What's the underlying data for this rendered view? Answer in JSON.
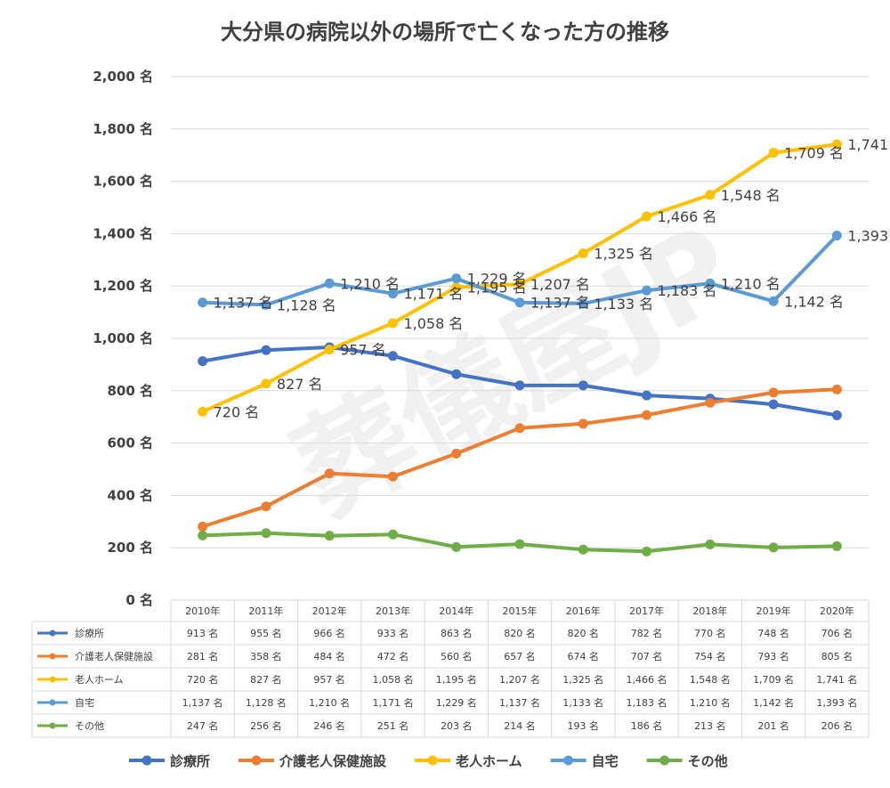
{
  "chart_data": {
    "type": "line",
    "title": "大分県の病院以外の場所で亡くなった方の推移",
    "watermark": "葬儀屋JP",
    "unit": "名",
    "ylim": [
      0,
      2000
    ],
    "yticks": [
      "0 名",
      "200 名",
      "400 名",
      "600 名",
      "800 名",
      "1,000 名",
      "1,200 名",
      "1,400 名",
      "1,600 名",
      "1,800 名",
      "2,000 名"
    ],
    "categories": [
      "2010年",
      "2011年",
      "2012年",
      "2013年",
      "2014年",
      "2015年",
      "2016年",
      "2017年",
      "2018年",
      "2019年",
      "2020年"
    ],
    "legend_position": "bottom",
    "series": [
      {
        "name": "診療所",
        "color": "#4472c4",
        "show_labels": false,
        "values": [
          913,
          955,
          966,
          933,
          863,
          820,
          820,
          782,
          770,
          748,
          706
        ],
        "labels": [
          "913 名",
          "955 名",
          "966 名",
          "933 名",
          "863 名",
          "820 名",
          "820 名",
          "782 名",
          "770 名",
          "748 名",
          "706 名"
        ]
      },
      {
        "name": "介護老人保健施設",
        "color": "#ed7d31",
        "show_labels": false,
        "values": [
          281,
          358,
          484,
          472,
          560,
          657,
          674,
          707,
          754,
          793,
          805
        ],
        "labels": [
          "281 名",
          "358 名",
          "484 名",
          "472 名",
          "560 名",
          "657 名",
          "674 名",
          "707 名",
          "754 名",
          "793 名",
          "805 名"
        ]
      },
      {
        "name": "老人ホーム",
        "color": "#ffc000",
        "show_labels": true,
        "values": [
          720,
          827,
          957,
          1058,
          1195,
          1207,
          1325,
          1466,
          1548,
          1709,
          1741
        ],
        "labels": [
          "720 名",
          "827 名",
          "957 名",
          "1,058 名",
          "1,195 名",
          "1,207 名",
          "1,325 名",
          "1,466 名",
          "1,548 名",
          "1,709 名",
          "1,741 名"
        ]
      },
      {
        "name": "自宅",
        "color": "#5b9bd5",
        "show_labels": true,
        "values": [
          1137,
          1128,
          1210,
          1171,
          1229,
          1137,
          1133,
          1183,
          1210,
          1142,
          1393
        ],
        "labels": [
          "1,137 名",
          "1,128 名",
          "1,210 名",
          "1,171 名",
          "1,229 名",
          "1,137 名",
          "1,133 名",
          "1,183 名",
          "1,210 名",
          "1,142 名",
          "1,393 名"
        ]
      },
      {
        "name": "その他",
        "color": "#70ad47",
        "show_labels": false,
        "values": [
          247,
          256,
          246,
          251,
          203,
          214,
          193,
          186,
          213,
          201,
          206
        ],
        "labels": [
          "247 名",
          "256 名",
          "246 名",
          "251 名",
          "203 名",
          "214 名",
          "193 名",
          "186 名",
          "213 名",
          "201 名",
          "206 名"
        ]
      }
    ]
  }
}
